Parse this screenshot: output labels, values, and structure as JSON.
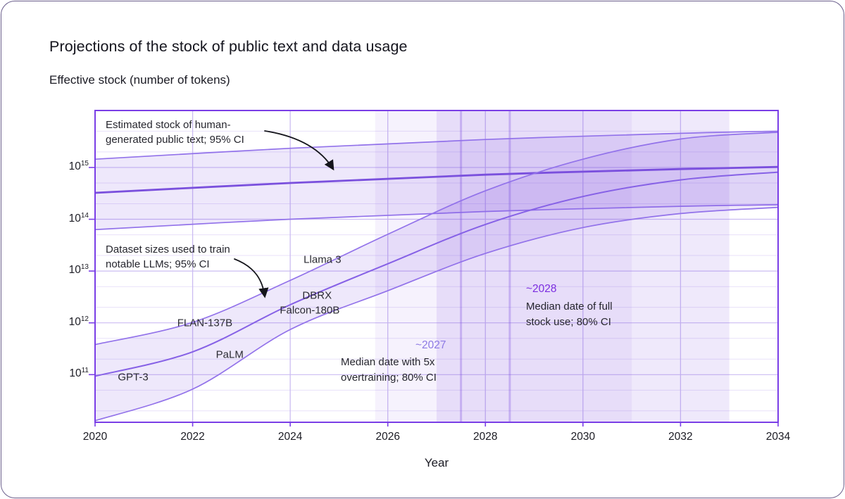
{
  "header": {
    "title": "Projections of the stock of public text and data usage",
    "y_axis_title": "Effective stock (number of tokens)"
  },
  "colors": {
    "axis_border": "#7a3ee6",
    "grid_major": "#cbbcf2",
    "grid_minor": "#e8e1fa",
    "band_fill": "rgba(124,77,223,0.13)",
    "band_edge": "#9272ea",
    "stock_median_line": "#7a50dd",
    "dataset_median_line": "#8661e6",
    "vband_overtraining_fill": "rgba(124,77,223,0.07)",
    "vband_fullstock_fill": "rgba(124,77,223,0.12)",
    "vband_median_line": "rgba(124,77,223,0.32)",
    "event_2027_label": "#8d7ae4",
    "event_2028_label": "#7c2ee0",
    "text_dark": "#26262e",
    "arrow": "#15151c",
    "card_border": "#6b5f8c"
  },
  "annotations": {
    "est_stock": {
      "line1": "Estimated stock of human-",
      "line2": "generated public text; 95% CI"
    },
    "datasets": {
      "line1": "Dataset sizes used to train",
      "line2": "notable LLMs; 95% CI"
    }
  },
  "chart_data": {
    "type": "area",
    "title": "Projections of the stock of public text and data usage",
    "xlabel": "Year",
    "ylabel": "Effective stock (number of tokens)",
    "y_scale": "log10",
    "xlim": [
      2020,
      2034
    ],
    "ylim_log10": [
      10.08,
      16.1
    ],
    "grid": "on",
    "x_ticks": [
      "2020",
      "2022",
      "2024",
      "2026",
      "2028",
      "2030",
      "2032",
      "2034"
    ],
    "x_gridline_years": [
      2022,
      2024,
      2026,
      2028,
      2030,
      2032
    ],
    "y_ticks": [
      {
        "base": "10",
        "exp": "15",
        "log10": 15
      },
      {
        "base": "10",
        "exp": "14",
        "log10": 14
      },
      {
        "base": "10",
        "exp": "13",
        "log10": 13
      },
      {
        "base": "10",
        "exp": "12",
        "log10": 12
      },
      {
        "base": "10",
        "exp": "11",
        "log10": 11
      }
    ],
    "y_minor_gridlines_log10": [
      15.7,
      15.3,
      14.7,
      14.3,
      13.7,
      13.3,
      12.7,
      12.3,
      11.7,
      11.3,
      10.7,
      10.3
    ],
    "series": [
      {
        "name": "Estimated stock of human-generated public text; 95% CI",
        "kind": "confidence-band",
        "x": [
          2020,
          2024,
          2028,
          2032,
          2034
        ],
        "upper_log10": [
          15.16,
          15.37,
          15.54,
          15.66,
          15.7
        ],
        "median_log10": [
          14.51,
          14.7,
          14.86,
          14.97,
          15.01
        ],
        "lower_log10": [
          13.8,
          14.0,
          14.15,
          14.25,
          14.28
        ],
        "median_style": "thick"
      },
      {
        "name": "Dataset sizes used to train notable LLMs; 95% CI",
        "kind": "confidence-band",
        "x": [
          2020,
          2022,
          2024,
          2026,
          2028,
          2030,
          2032,
          2034
        ],
        "upper_log10": [
          11.58,
          12.01,
          12.82,
          13.71,
          14.55,
          15.16,
          15.55,
          15.68
        ],
        "median_log10": [
          10.97,
          11.44,
          12.35,
          13.14,
          13.9,
          14.44,
          14.76,
          14.91
        ],
        "lower_log10": [
          10.11,
          10.72,
          11.87,
          12.62,
          13.34,
          13.84,
          14.11,
          14.23
        ],
        "median_style": "normal"
      }
    ],
    "events": [
      {
        "id": "evt2027",
        "label": "~2027",
        "desc_line1": "Median date with 5x",
        "desc_line2": "overtraining; 80% CI",
        "ci_start_year": 2025.74,
        "ci_end_year": 2031.0,
        "median_year": 2027.5
      },
      {
        "id": "evt2028",
        "label": "~2028",
        "desc_line1": "Median date of full",
        "desc_line2": "stock use; 80% CI",
        "ci_start_year": 2027.0,
        "ci_end_year": 2033.0,
        "median_year": 2028.5
      }
    ],
    "model_labels": [
      {
        "name": "GPT-3",
        "year": 2020.78,
        "log10": 10.95
      },
      {
        "name": "PaLM",
        "year": 2022.76,
        "log10": 11.39
      },
      {
        "name": "FLAN-137B",
        "year": 2022.25,
        "log10": 11.99
      },
      {
        "name": "Falcon-180B",
        "year": 2024.4,
        "log10": 12.24
      },
      {
        "name": "DBRX",
        "year": 2024.55,
        "log10": 12.53
      },
      {
        "name": "Llama 3",
        "year": 2024.66,
        "log10": 13.22
      }
    ]
  }
}
